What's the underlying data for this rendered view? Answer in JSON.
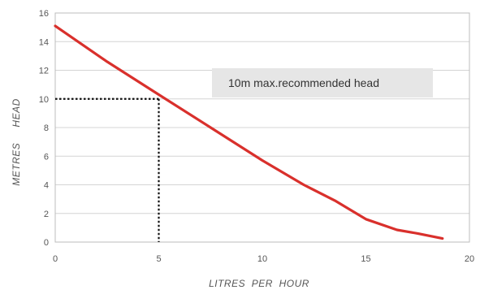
{
  "chart_data": {
    "type": "line",
    "xlabel": "LITRES  PER  HOUR",
    "ylabel": "METRES     HEAD",
    "xlim": [
      0,
      20
    ],
    "ylim": [
      0,
      16
    ],
    "xticks": [
      0,
      5,
      10,
      15,
      20
    ],
    "yticks": [
      0,
      2,
      4,
      6,
      8,
      10,
      12,
      14,
      16
    ],
    "grid": "horizontal",
    "series": [
      {
        "color": "#d9302c",
        "x": [
          0,
          2.5,
          5,
          7.5,
          10,
          12,
          13.5,
          15,
          16.5,
          17.5,
          18.7
        ],
        "y": [
          15.1,
          12.6,
          10.3,
          8.0,
          5.7,
          4.0,
          2.9,
          1.6,
          0.85,
          0.6,
          0.25
        ]
      }
    ],
    "reference_point": {
      "x": 5,
      "y": 10
    },
    "annotation": {
      "text": "10m max.recommended head",
      "background": "#e6e6e6"
    }
  }
}
